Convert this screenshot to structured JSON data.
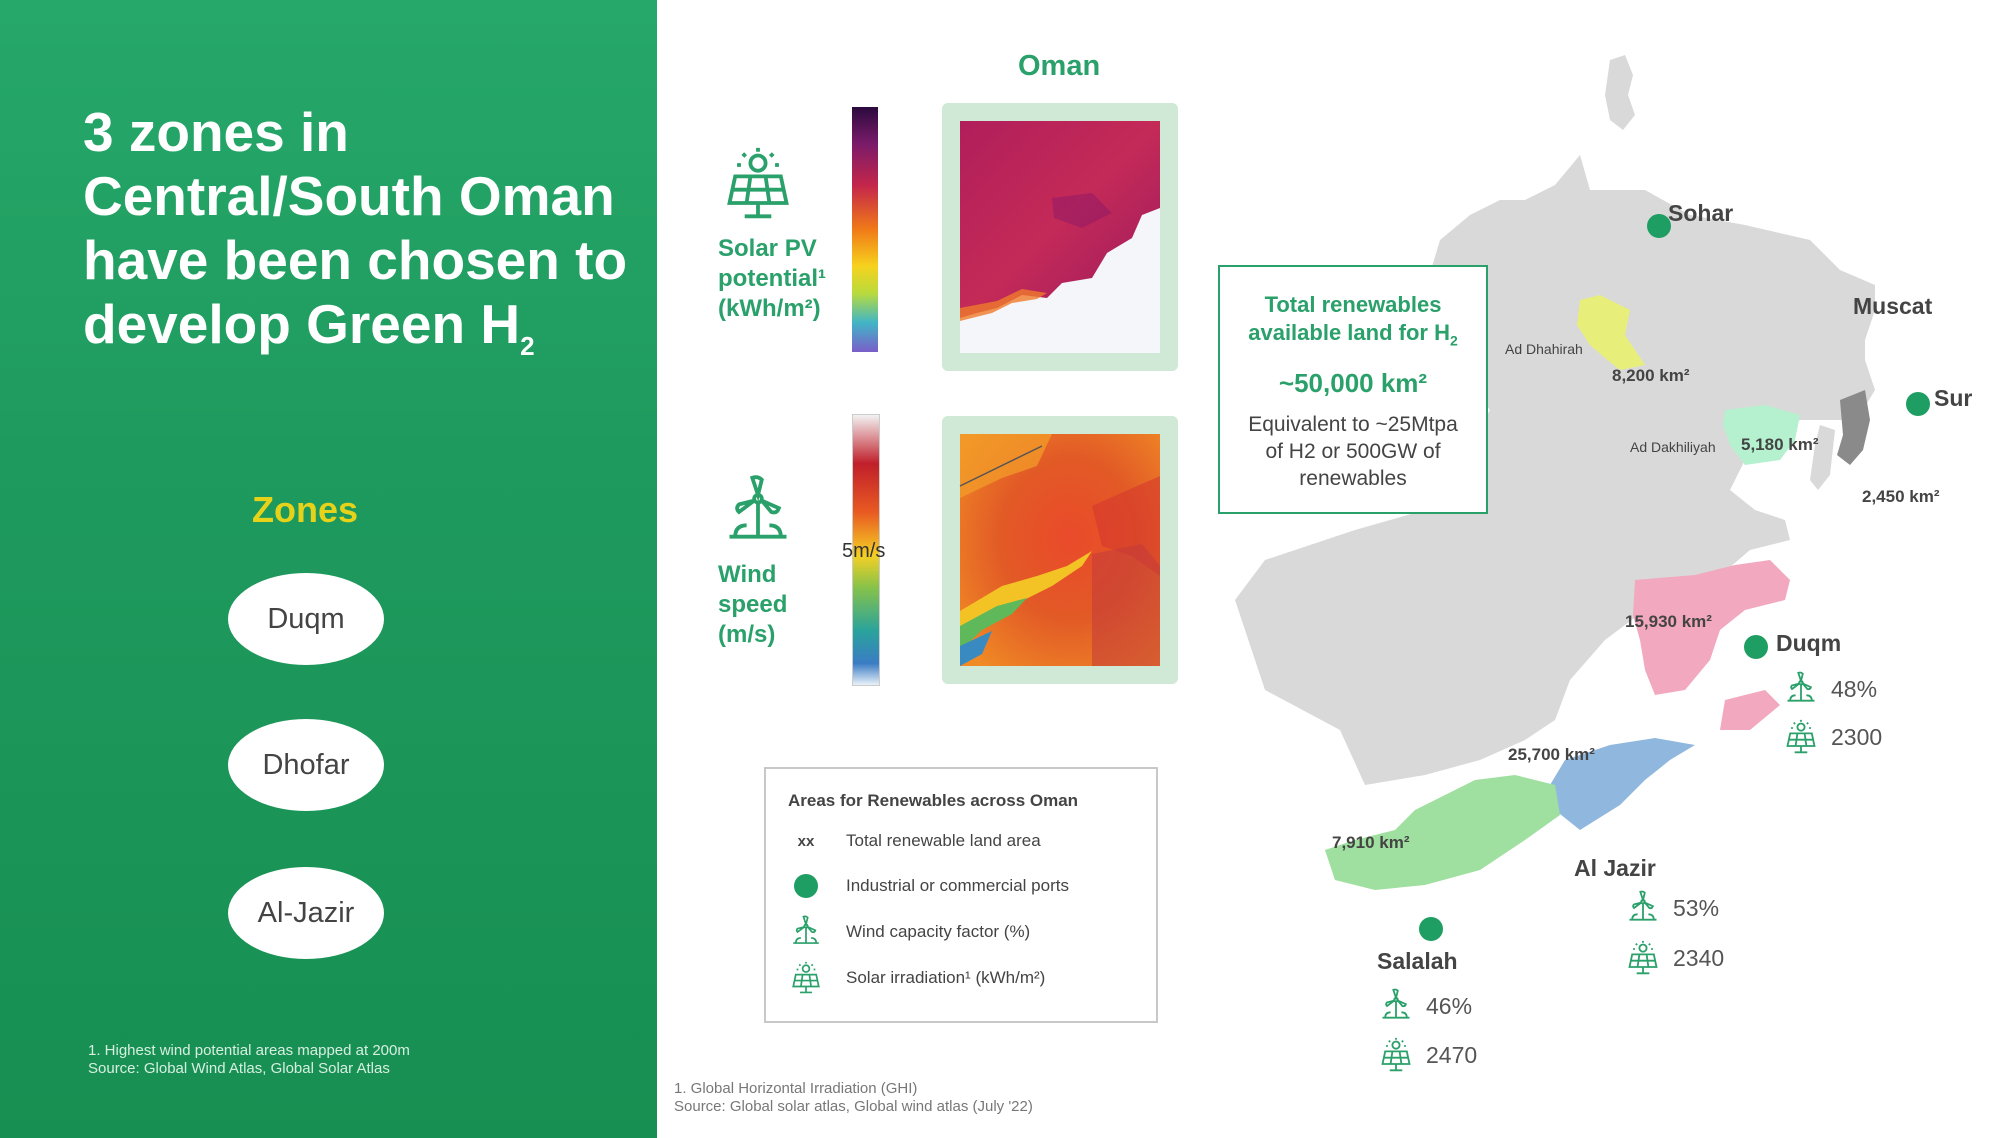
{
  "left": {
    "headline": "3 zones in Central/South Oman have been chosen to develop Green H",
    "headline_sub": "2",
    "zones_heading": "Zones",
    "zones": [
      "Duqm",
      "Dhofar",
      "Al-Jazir"
    ],
    "footnote_line1": "1. Highest wind potential areas mapped at 200m",
    "footnote_line2": "Source: Global Wind Atlas, Global Solar Atlas"
  },
  "right": {
    "oman_title": "Oman",
    "solar": {
      "label_line1": "Solar PV",
      "label_line2": "potential¹",
      "label_line3": "(kWh/m²)",
      "icon": "solar-panel-icon"
    },
    "wind": {
      "label_line1": "Wind",
      "label_line2": "speed",
      "label_line3": "(m/s)",
      "mid_label": "5m/s",
      "icon": "wind-turbine-icon"
    },
    "total_box": {
      "title_line1": "Total renewables",
      "title_line2": "available land for H",
      "title_sub": "2",
      "value": "~50,000 km²",
      "desc_line1": "Equivalent to ~25Mtpa",
      "desc_line2": "of H2 or 500GW of",
      "desc_line3": "renewables"
    },
    "legend": {
      "title": "Areas for Renewables across Oman",
      "xx_symbol": "xx",
      "rows": [
        "Total renewable land area",
        "Industrial or commercial ports",
        "Wind capacity factor (%)",
        "Solar irradiation¹ (kWh/m²)"
      ]
    },
    "map": {
      "cities": {
        "sohar": "Sohar",
        "muscat": "Muscat",
        "sur": "Sur",
        "duqm": "Duqm",
        "al_jazir": "Al Jazir",
        "salalah": "Salalah"
      },
      "regions": {
        "ad_dhahirah": "Ad Dhahirah",
        "ad_dakhiliyah": "Ad Dakhiliyah"
      },
      "areas": {
        "dhahirah_area": "8,200 km²",
        "dakhiliyah_area": "5,180 km²",
        "sur_area": "2,450 km²",
        "duqm_area": "15,930 km²",
        "jazir_area": "25,700 km²",
        "salalah_area": "7,910 km²"
      },
      "stats": {
        "duqm_wind": "48%",
        "duqm_solar": "2300",
        "jazir_wind": "53%",
        "jazir_solar": "2340",
        "salalah_wind": "46%",
        "salalah_solar": "2470"
      }
    },
    "footnote_line1": "1. Global Horizontal Irradiation (GHI)",
    "footnote_line2": "Source: Global solar atlas, Global wind atlas (July '22)"
  },
  "colors": {
    "brand_green": "#2aa06a",
    "panel_green": "#1f9a5e",
    "zones_yellow": "#e7d21a",
    "port_dot": "#1e9e62",
    "zone_dhahirah": "#e7ef7a",
    "zone_dakhiliyah": "#b5f0cf",
    "zone_sur": "#8a8a8a",
    "zone_duqm": "#f2a8bf",
    "zone_jazir": "#90b8de",
    "zone_salalah": "#9fdf9f"
  }
}
